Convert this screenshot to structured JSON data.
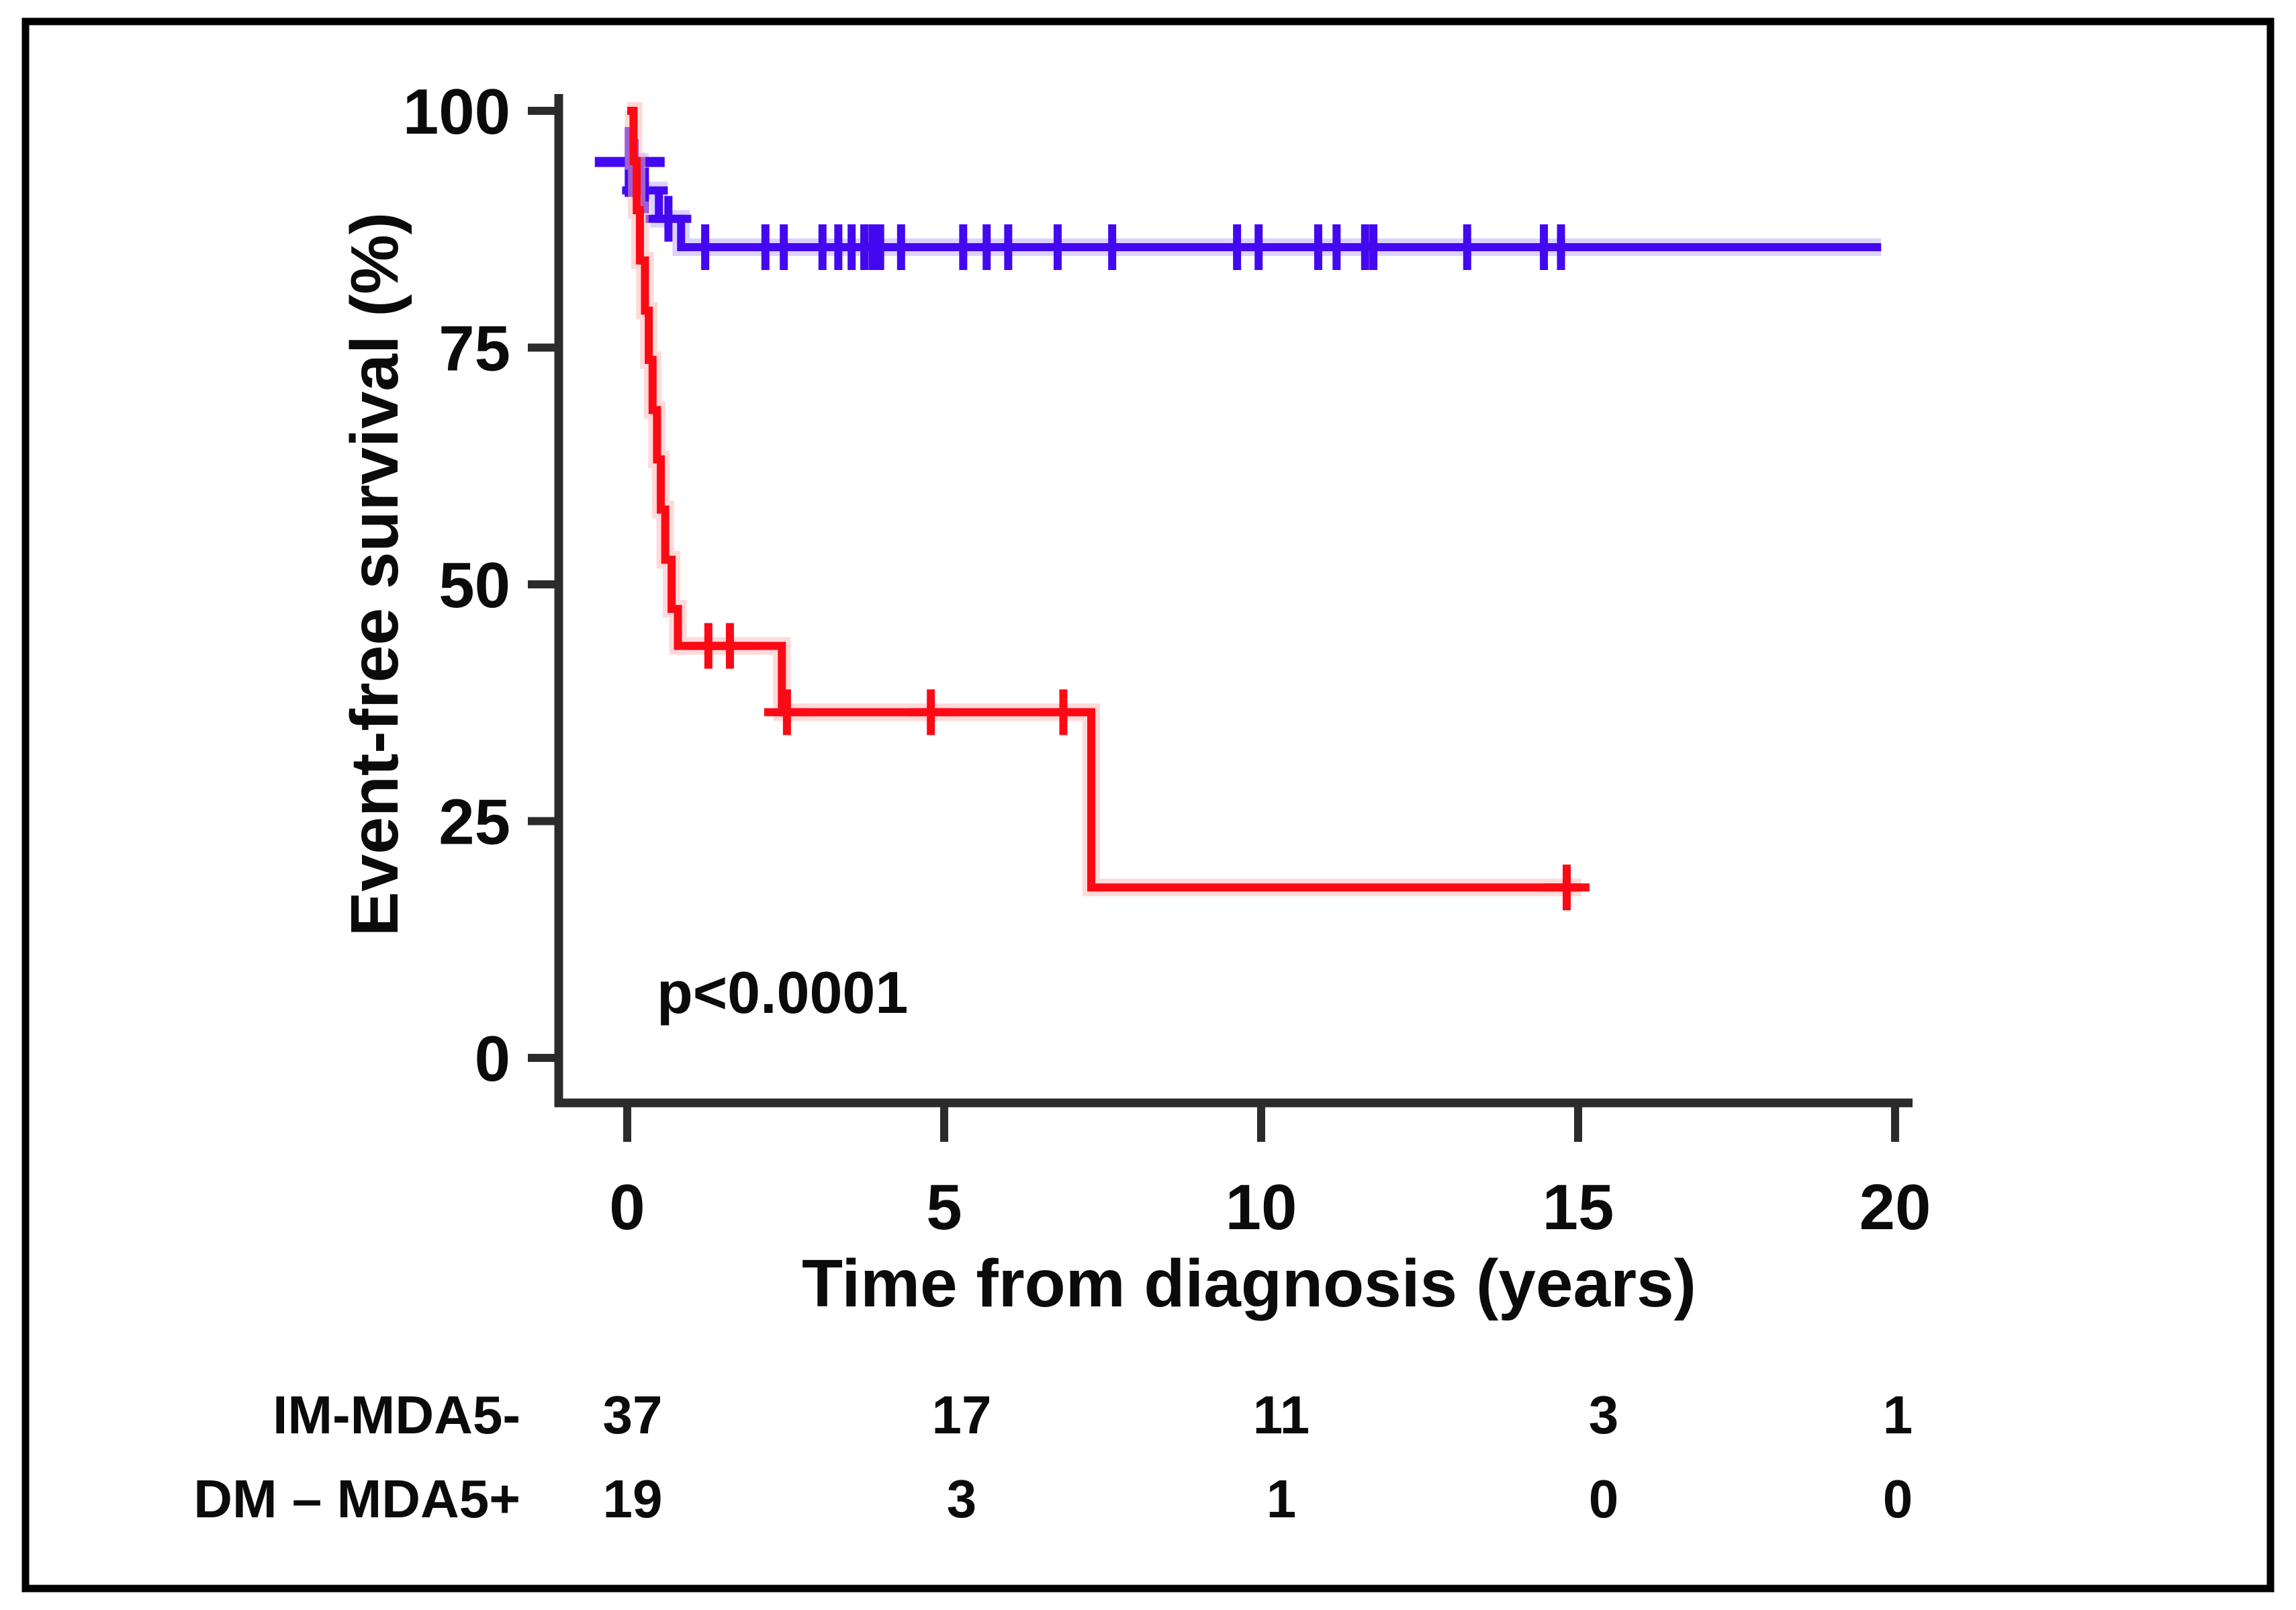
{
  "figure": {
    "background": "#ffffff",
    "border_color": "#000000",
    "axis_color": "#2b2b2b"
  },
  "chart_data": {
    "type": "line",
    "subtype": "kaplan-meier-step",
    "title": "",
    "xlabel": "Time from diagnosis (years)",
    "ylabel": "Event-free survival (%)",
    "annotation": "p<0.0001",
    "xlim": [
      0,
      20
    ],
    "ylim": [
      0,
      100
    ],
    "xticks": [
      0,
      5,
      10,
      15,
      20
    ],
    "yticks": [
      0,
      25,
      50,
      75,
      100
    ],
    "grid": false,
    "legend_position": "risk-table-bottom",
    "series": [
      {
        "name": "IM-MDA5-",
        "color": "#4408f0",
        "glow": "#b9a6ff",
        "steps": [
          [
            0,
            94.6
          ],
          [
            0.2,
            91.6
          ],
          [
            0.5,
            88.6
          ],
          [
            0.85,
            85.6
          ]
        ],
        "end": 19.78,
        "censors": [
          0.04,
          0.12,
          0.28,
          0.65,
          1.23,
          2.18,
          2.47,
          3.08,
          3.33,
          3.54,
          3.74,
          3.87,
          3.99,
          4.32,
          5.3,
          5.67,
          6.01,
          6.79,
          7.65,
          9.62,
          9.96,
          10.9,
          11.19,
          11.64,
          11.77,
          13.25,
          14.46,
          14.73
        ],
        "big_censor_index": 0
      },
      {
        "name": "DM - MDA5+",
        "color": "#fa0a14",
        "glow": "#ffb3b3",
        "steps": [
          [
            0,
            100
          ],
          [
            0.1,
            94.7
          ],
          [
            0.15,
            89.5
          ],
          [
            0.2,
            84.2
          ],
          [
            0.28,
            78.9
          ],
          [
            0.34,
            73.7
          ],
          [
            0.4,
            68.4
          ],
          [
            0.47,
            63.2
          ],
          [
            0.53,
            57.9
          ],
          [
            0.6,
            52.6
          ],
          [
            0.7,
            47.4
          ],
          [
            0.8,
            43.5
          ],
          [
            2.44,
            36.5
          ],
          [
            7.32,
            18
          ]
        ],
        "end": 15.05,
        "censors": [
          1.28,
          1.62,
          2.52,
          4.79,
          6.88,
          14.82
        ],
        "big_censor_index": -1
      }
    ],
    "risk_table": {
      "columns": [
        0,
        5,
        10,
        15,
        20
      ],
      "rows": [
        {
          "label": "IM-MDA5-",
          "color": "#2553e0",
          "counts": [
            "37",
            "17",
            "11",
            "3",
            "1"
          ]
        },
        {
          "label": "DM – MDA5+",
          "color": "#fb0f0f",
          "counts": [
            "19",
            "3",
            "1",
            "0",
            "0"
          ]
        }
      ]
    }
  }
}
